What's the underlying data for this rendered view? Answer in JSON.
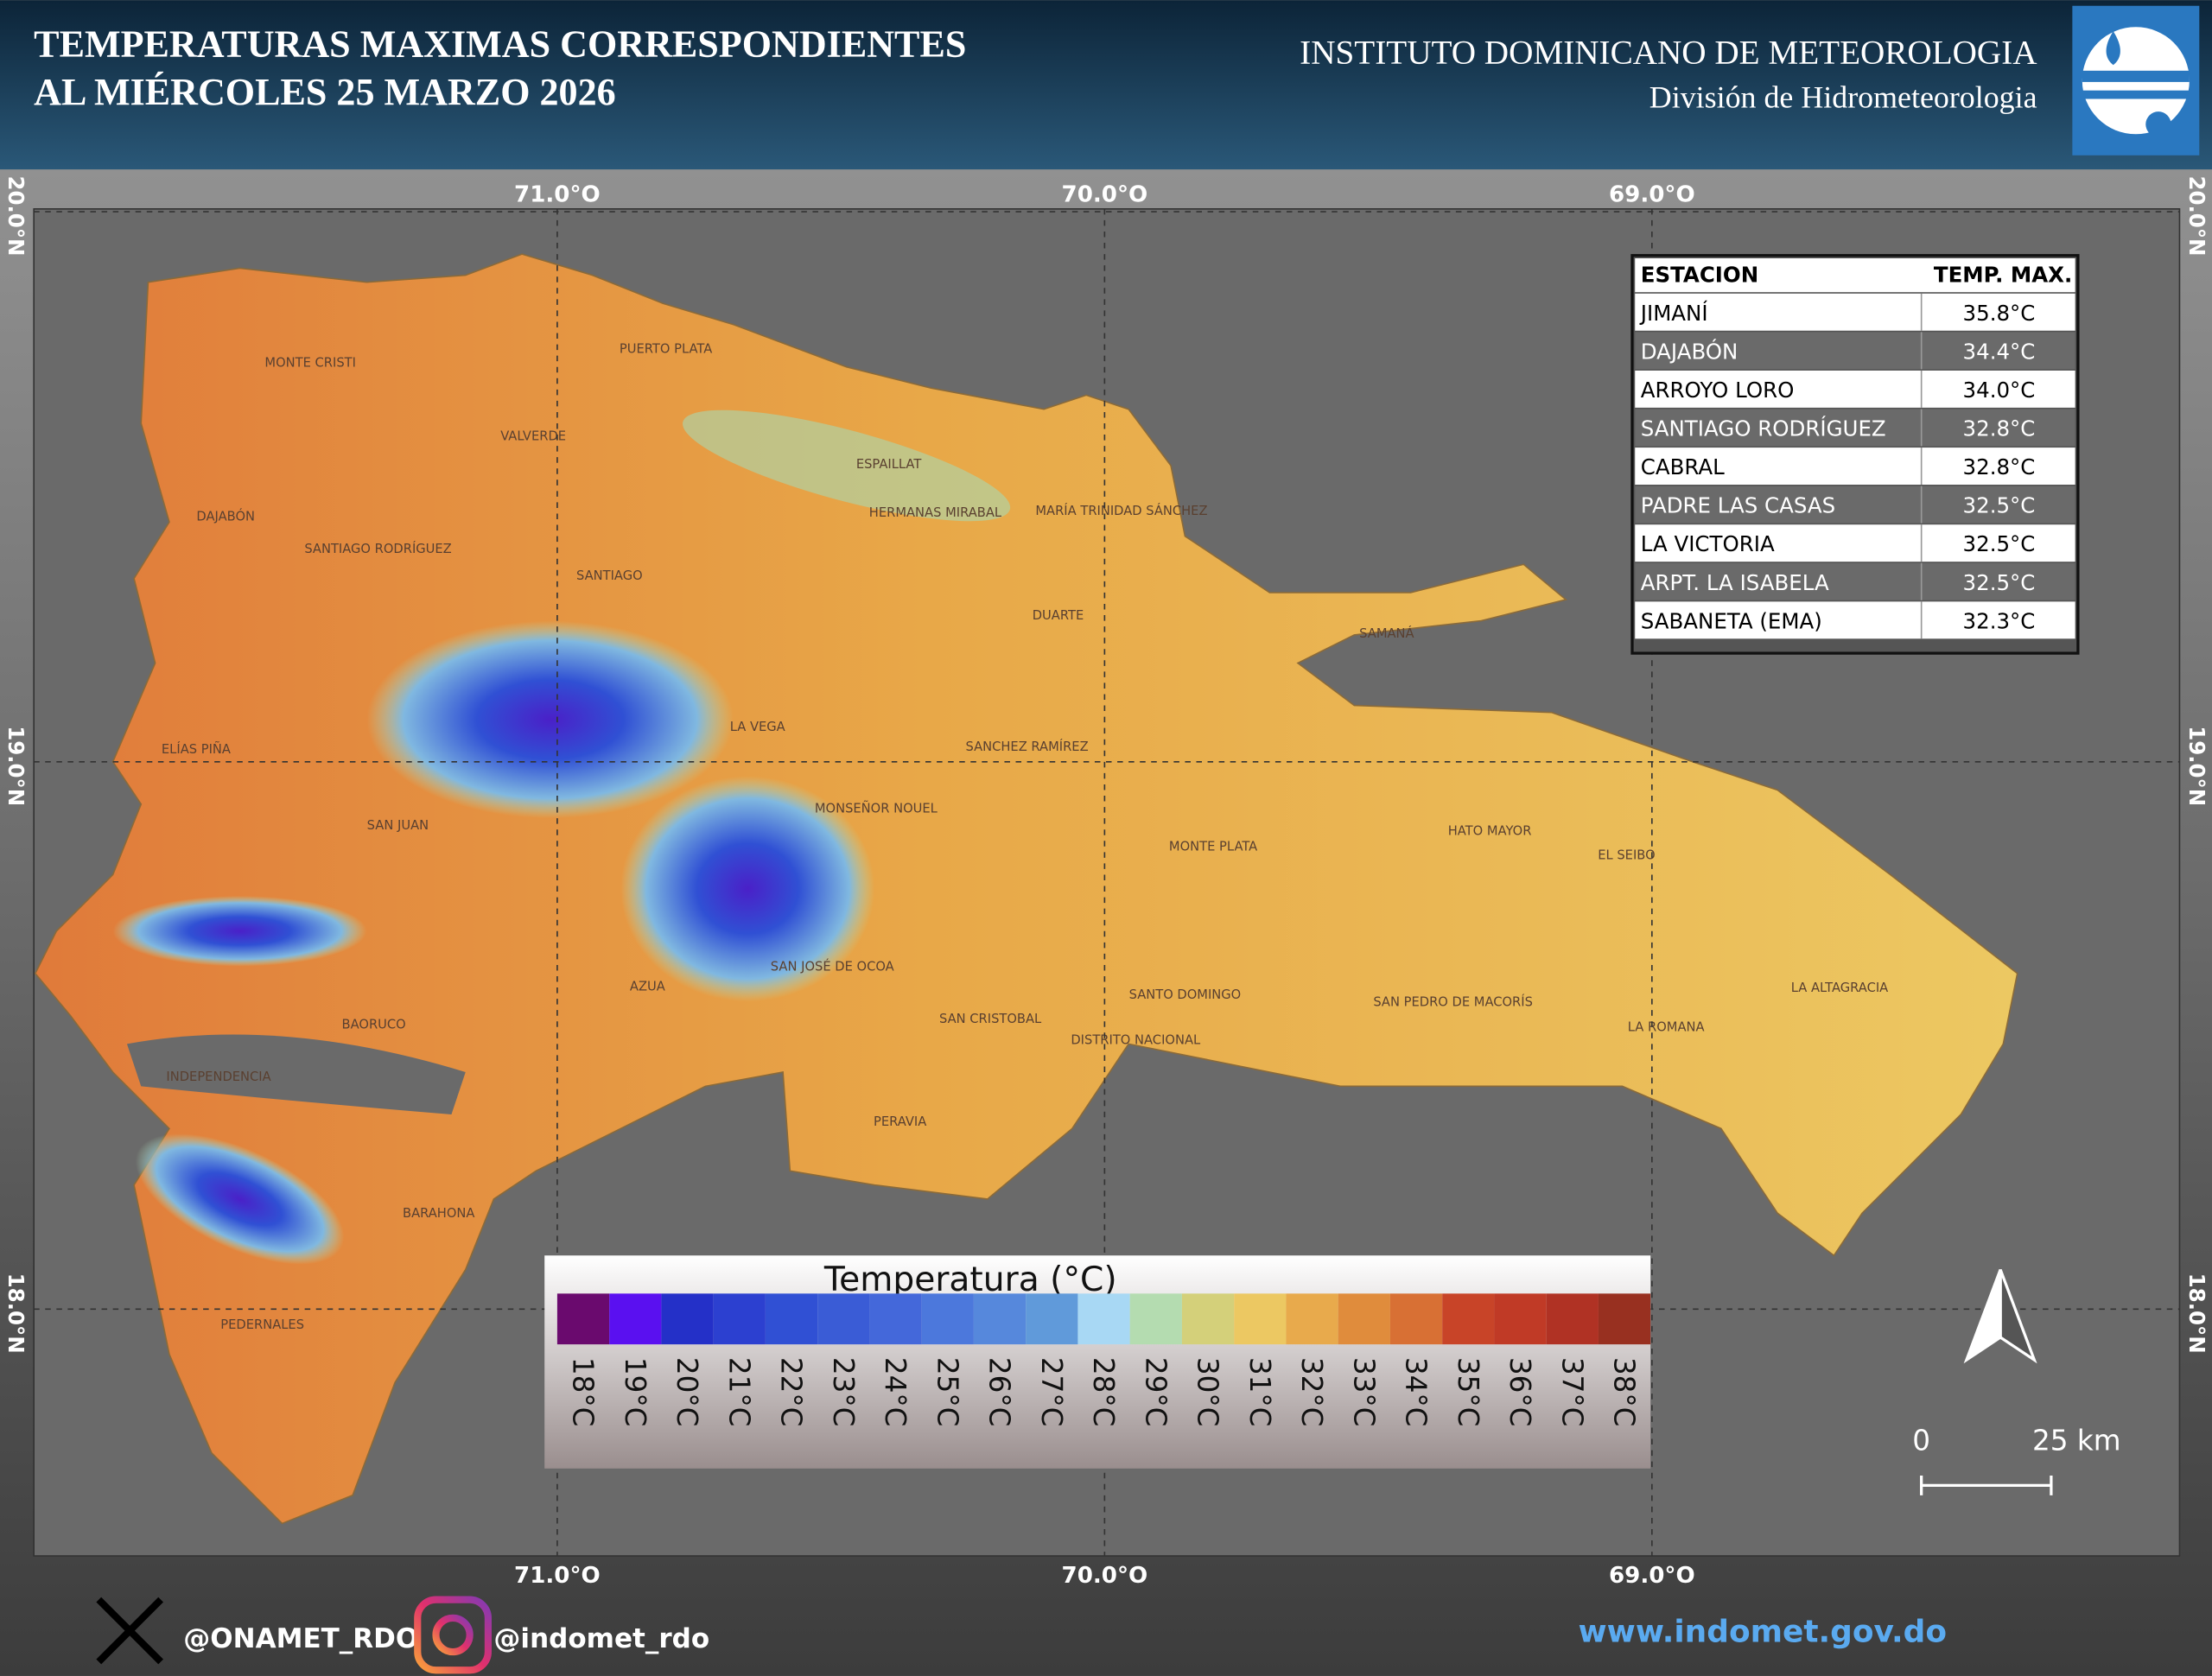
{
  "header": {
    "title_lines": [
      "TEMPERATURAS MAXIMAS CORRESPONDIENTES",
      "AL MIÉRCOLES 25  MARZO 2026"
    ],
    "institute": "INSTITUTO DOMINICANO DE METEOROLOGIA",
    "division": "División de Hidrometeorologia"
  },
  "map": {
    "longitudes": [
      "71.0°O",
      "70.0°O",
      "69.0°O"
    ],
    "latitudes": [
      "20.0°N",
      "19.0°N",
      "18.0°N"
    ],
    "provinces": [
      "MONTE CRISTI",
      "PUERTO PLATA",
      "VALVERDE",
      "ESPAILLAT",
      "HERMANAS MIRABAL",
      "MARÍA TRINIDAD SÁNCHEZ",
      "DAJABÓN",
      "SANTIAGO RODRÍGUEZ",
      "SANTIAGO",
      "DUARTE",
      "SAMANÁ",
      "LA VEGA",
      "SANCHEZ RAMÍREZ",
      "ELÍAS PIÑA",
      "SAN JUAN",
      "MONSEÑOR NOUEL",
      "MONTE PLATA",
      "HATO MAYOR",
      "EL SEIBO",
      "SAN JOSÉ DE OCOA",
      "AZUA",
      "SANTO DOMINGO",
      "SAN PEDRO DE MACORÍS",
      "LA ALTAGRACIA",
      "BAORUCO",
      "SAN CRISTOBAL",
      "DISTRITO NACIONAL",
      "LA ROMANA",
      "INDEPENDENCIA",
      "PERAVIA",
      "BARAHONA",
      "PEDERNALES"
    ]
  },
  "table": {
    "header": [
      "ESTACION",
      "TEMP. MAX."
    ],
    "rows": [
      [
        "JIMANÍ",
        "35.8°C"
      ],
      [
        "DAJABÓN",
        "34.4°C"
      ],
      [
        "ARROYO LORO",
        "34.0°C"
      ],
      [
        "SANTIAGO RODRÍGUEZ",
        "32.8°C"
      ],
      [
        "CABRAL",
        "32.8°C"
      ],
      [
        "PADRE LAS CASAS",
        "32.5°C"
      ],
      [
        "LA VICTORIA",
        "32.5°C"
      ],
      [
        "ARPT. LA ISABELA",
        "32.5°C"
      ],
      [
        "SABANETA (EMA)",
        "32.3°C"
      ]
    ]
  },
  "legend": {
    "title": "Temperatura (°C)",
    "items": [
      {
        "label": "18°C",
        "color": "#6a0a6e"
      },
      {
        "label": "19°C",
        "color": "#5a10f0"
      },
      {
        "label": "20°C",
        "color": "#2430c8"
      },
      {
        "label": "21°C",
        "color": "#2c40d0"
      },
      {
        "label": "22°C",
        "color": "#3050d4"
      },
      {
        "label": "23°C",
        "color": "#3a5cd6"
      },
      {
        "label": "24°C",
        "color": "#4468da"
      },
      {
        "label": "25°C",
        "color": "#4c78dc"
      },
      {
        "label": "26°C",
        "color": "#5688dc"
      },
      {
        "label": "27°C",
        "color": "#609ada"
      },
      {
        "label": "28°C",
        "color": "#a8d8f4"
      },
      {
        "label": "29°C",
        "color": "#b4dcb0"
      },
      {
        "label": "30°C",
        "color": "#d4d07a"
      },
      {
        "label": "31°C",
        "color": "#ecc862"
      },
      {
        "label": "32°C",
        "color": "#e8aa4c"
      },
      {
        "label": "33°C",
        "color": "#e08c3c"
      },
      {
        "label": "34°C",
        "color": "#d87034"
      },
      {
        "label": "35°C",
        "color": "#c84428"
      },
      {
        "label": "36°C",
        "color": "#c03a26"
      },
      {
        "label": "37°C",
        "color": "#b03224"
      },
      {
        "label": "38°C",
        "color": "#983020"
      }
    ]
  },
  "scale": {
    "start": "0",
    "end": "25 km"
  },
  "footer": {
    "twitter": "@ONAMET_RDO",
    "instagram": "@indomet_rdo",
    "website": "www.indomet.gov.do"
  }
}
